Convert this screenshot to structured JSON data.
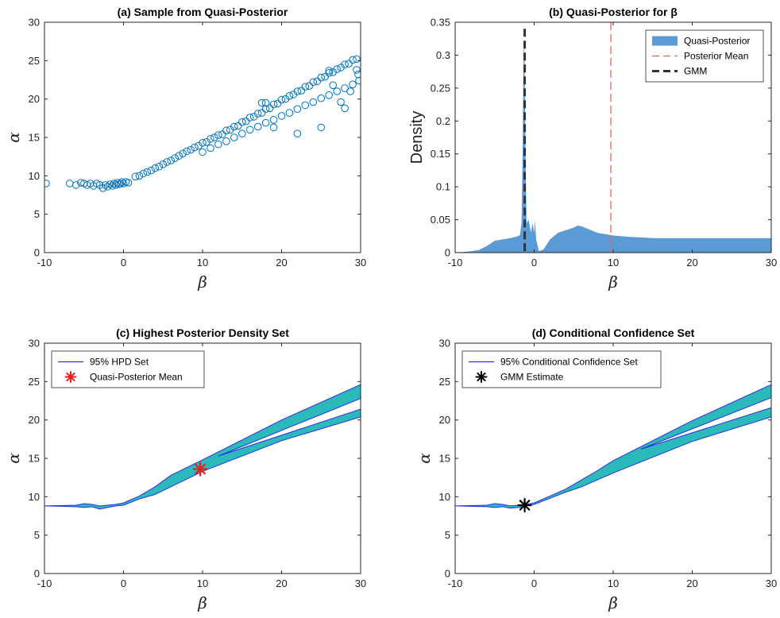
{
  "chart_data": [
    {
      "id": "a",
      "type": "scatter",
      "title": "(a) Sample from Quasi-Posterior",
      "xlabel": "β",
      "ylabel": "α",
      "xlim": [
        -10,
        30
      ],
      "ylim": [
        0,
        30
      ],
      "xticks": [
        -10,
        0,
        10,
        20,
        30
      ],
      "yticks": [
        0,
        5,
        10,
        15,
        20,
        25,
        30
      ],
      "marker": "open-circle",
      "color": "#0072BD",
      "points": [
        [
          -9.8,
          9.0
        ],
        [
          -6.8,
          9.0
        ],
        [
          -6.0,
          8.8
        ],
        [
          -5.4,
          9.1
        ],
        [
          -5.0,
          9.0
        ],
        [
          -4.6,
          8.8
        ],
        [
          -4.2,
          9.0
        ],
        [
          -3.8,
          8.7
        ],
        [
          -3.4,
          9.0
        ],
        [
          -3.0,
          8.8
        ],
        [
          -2.6,
          8.4
        ],
        [
          -2.3,
          8.8
        ],
        [
          -2.0,
          8.6
        ],
        [
          -1.7,
          8.9
        ],
        [
          -1.4,
          8.7
        ],
        [
          -1.2,
          9.0
        ],
        [
          -1.0,
          8.8
        ],
        [
          -0.8,
          9.1
        ],
        [
          -0.6,
          8.9
        ],
        [
          -0.4,
          9.0
        ],
        [
          -0.2,
          9.2
        ],
        [
          0.0,
          9.0
        ],
        [
          0.3,
          9.2
        ],
        [
          0.6,
          9.1
        ],
        [
          1.5,
          9.9
        ],
        [
          2.0,
          10.0
        ],
        [
          2.5,
          10.3
        ],
        [
          3.0,
          10.5
        ],
        [
          3.5,
          10.7
        ],
        [
          4.0,
          11.0
        ],
        [
          4.5,
          11.2
        ],
        [
          5.0,
          11.5
        ],
        [
          5.5,
          11.8
        ],
        [
          6.0,
          12.0
        ],
        [
          6.5,
          12.3
        ],
        [
          7.0,
          12.6
        ],
        [
          7.5,
          12.9
        ],
        [
          8.0,
          13.2
        ],
        [
          8.5,
          13.4
        ],
        [
          9.0,
          13.7
        ],
        [
          9.5,
          13.9
        ],
        [
          10.0,
          14.3
        ],
        [
          10.5,
          14.4
        ],
        [
          11.0,
          14.8
        ],
        [
          11.5,
          15.0
        ],
        [
          12.0,
          15.3
        ],
        [
          12.5,
          15.4
        ],
        [
          13.0,
          15.9
        ],
        [
          13.5,
          16.0
        ],
        [
          14.0,
          16.4
        ],
        [
          14.5,
          16.5
        ],
        [
          15.0,
          17.0
        ],
        [
          15.5,
          17.1
        ],
        [
          16.0,
          17.6
        ],
        [
          16.5,
          17.7
        ],
        [
          17.0,
          18.1
        ],
        [
          17.5,
          18.2
        ],
        [
          18.0,
          18.7
        ],
        [
          18.5,
          18.8
        ],
        [
          19.0,
          19.3
        ],
        [
          19.5,
          19.4
        ],
        [
          20.0,
          19.9
        ],
        [
          20.5,
          20.0
        ],
        [
          21.0,
          20.4
        ],
        [
          21.5,
          20.6
        ],
        [
          22.0,
          21.0
        ],
        [
          22.5,
          21.1
        ],
        [
          23.0,
          21.6
        ],
        [
          23.5,
          21.7
        ],
        [
          24.0,
          22.2
        ],
        [
          24.5,
          22.3
        ],
        [
          25.0,
          22.8
        ],
        [
          25.5,
          22.9
        ],
        [
          26.0,
          23.4
        ],
        [
          26.5,
          23.5
        ],
        [
          27.0,
          23.9
        ],
        [
          27.5,
          24.1
        ],
        [
          28.0,
          24.5
        ],
        [
          28.5,
          24.6
        ],
        [
          29.0,
          25.1
        ],
        [
          29.5,
          25.2
        ],
        [
          10.0,
          13.1
        ],
        [
          11.0,
          13.6
        ],
        [
          12.0,
          14.1
        ],
        [
          13.0,
          14.5
        ],
        [
          14.0,
          15.0
        ],
        [
          15.0,
          15.5
        ],
        [
          16.0,
          16.0
        ],
        [
          17.0,
          16.4
        ],
        [
          18.0,
          16.9
        ],
        [
          19.0,
          17.3
        ],
        [
          20.0,
          17.8
        ],
        [
          21.0,
          18.2
        ],
        [
          22.0,
          18.7
        ],
        [
          23.0,
          19.2
        ],
        [
          24.0,
          19.6
        ],
        [
          25.0,
          20.1
        ],
        [
          26.0,
          20.5
        ],
        [
          27.0,
          21.0
        ],
        [
          28.0,
          21.4
        ],
        [
          29.0,
          21.9
        ],
        [
          29.8,
          22.4
        ],
        [
          17.5,
          19.5
        ],
        [
          18.0,
          19.5
        ],
        [
          25.0,
          16.3
        ],
        [
          26.0,
          23.7
        ],
        [
          29.5,
          23.8
        ],
        [
          29.7,
          23.2
        ],
        [
          27.5,
          19.6
        ],
        [
          28.0,
          18.8
        ],
        [
          28.7,
          21.0
        ],
        [
          22.0,
          15.5
        ],
        [
          19.0,
          16.3
        ],
        [
          26.5,
          21.8
        ]
      ]
    },
    {
      "id": "b",
      "type": "area",
      "title": "(b) Quasi-Posterior for β",
      "xlabel": "β",
      "ylabel": "Density",
      "xlim": [
        -10,
        30
      ],
      "ylim": [
        0,
        0.35
      ],
      "xticks": [
        -10,
        0,
        10,
        20,
        30
      ],
      "yticks": [
        0,
        0.05,
        0.1,
        0.15,
        0.2,
        0.25,
        0.3,
        0.35
      ],
      "legend": {
        "position": "top-right",
        "entries": [
          {
            "label": "Quasi-Posterior",
            "style": "patch",
            "color": "#5B9BD5"
          },
          {
            "label": "Posterior Mean",
            "style": "dashed",
            "color": "#E8635E"
          },
          {
            "label": "GMM",
            "style": "dashed",
            "color": "#333333"
          }
        ]
      },
      "density": [
        [
          -10,
          0.0
        ],
        [
          -9.0,
          0.001
        ],
        [
          -8.0,
          0.002
        ],
        [
          -7.0,
          0.004
        ],
        [
          -6.0,
          0.01
        ],
        [
          -5.0,
          0.018
        ],
        [
          -4.0,
          0.02
        ],
        [
          -3.0,
          0.022
        ],
        [
          -2.0,
          0.025
        ],
        [
          -1.8,
          0.027
        ],
        [
          -1.6,
          0.045
        ],
        [
          -1.45,
          0.16
        ],
        [
          -1.35,
          0.3
        ],
        [
          -1.25,
          0.32
        ],
        [
          -1.15,
          0.22
        ],
        [
          -1.05,
          0.1
        ],
        [
          -0.95,
          0.045
        ],
        [
          -0.7,
          0.05
        ],
        [
          -0.4,
          0.03
        ],
        [
          -0.2,
          0.045
        ],
        [
          0.0,
          0.03
        ],
        [
          0.1,
          0.049
        ],
        [
          0.25,
          0.02
        ],
        [
          0.6,
          0.002
        ],
        [
          1.2,
          0.005
        ],
        [
          2.0,
          0.02
        ],
        [
          3.0,
          0.03
        ],
        [
          4.0,
          0.034
        ],
        [
          5.0,
          0.038
        ],
        [
          5.5,
          0.041
        ],
        [
          6.0,
          0.04
        ],
        [
          7.0,
          0.035
        ],
        [
          8.0,
          0.03
        ],
        [
          9.0,
          0.028
        ],
        [
          10.0,
          0.026
        ],
        [
          12.0,
          0.024
        ],
        [
          15.0,
          0.022
        ],
        [
          20.0,
          0.022
        ],
        [
          25.0,
          0.022
        ],
        [
          30.0,
          0.022
        ]
      ],
      "posterior_mean": 9.7,
      "gmm": -1.2
    },
    {
      "id": "c",
      "type": "area",
      "title": "(c) Highest Posterior Density Set",
      "xlabel": "β",
      "ylabel": "α",
      "xlim": [
        -10,
        30
      ],
      "ylim": [
        0,
        30
      ],
      "xticks": [
        -10,
        0,
        10,
        20,
        30
      ],
      "yticks": [
        0,
        5,
        10,
        15,
        20,
        25,
        30
      ],
      "legend": {
        "position": "top-left",
        "entries": [
          {
            "label": "95% HPD Set",
            "style": "line",
            "color": "#2E2EE8"
          },
          {
            "label": "Quasi-Posterior Mean",
            "style": "asterisk",
            "color": "#E8201B"
          }
        ]
      },
      "fill_color": "#2BB9B9",
      "band": [
        [
          -10,
          8.8,
          8.8
        ],
        [
          -6,
          8.7,
          8.9
        ],
        [
          -5,
          8.6,
          9.1
        ],
        [
          -4,
          8.7,
          9.0
        ],
        [
          -3,
          8.4,
          8.8
        ],
        [
          -2,
          8.6,
          8.9
        ],
        [
          -1,
          8.8,
          9.0
        ],
        [
          0,
          8.9,
          9.2
        ],
        [
          2,
          9.7,
          10.1
        ],
        [
          4,
          10.3,
          11.3
        ],
        [
          6,
          11.3,
          12.8
        ],
        [
          8,
          12.3,
          13.8
        ],
        [
          10,
          13.3,
          14.8
        ],
        [
          20,
          17.3,
          20.0
        ],
        [
          30,
          20.4,
          24.6
        ]
      ],
      "gaps": [
        [
          13.5,
          15.0,
          15.6
        ],
        [
          30,
          21.4,
          22.8
        ]
      ],
      "marker_point": [
        9.7,
        13.6
      ]
    },
    {
      "id": "d",
      "type": "area",
      "title": "(d) Conditional Confidence Set",
      "xlabel": "β",
      "ylabel": "α",
      "xlim": [
        -10,
        30
      ],
      "ylim": [
        0,
        30
      ],
      "xticks": [
        -10,
        0,
        10,
        20,
        30
      ],
      "yticks": [
        0,
        5,
        10,
        15,
        20,
        25,
        30
      ],
      "legend": {
        "position": "top-left",
        "entries": [
          {
            "label": "95% Conditional Confidence Set",
            "style": "line",
            "color": "#2E2EE8"
          },
          {
            "label": "GMM Estimate",
            "style": "asterisk",
            "color": "#000000"
          }
        ]
      },
      "fill_color": "#2BB9B9",
      "band": [
        [
          -10,
          8.8,
          8.8
        ],
        [
          -6,
          8.7,
          8.9
        ],
        [
          -5,
          8.6,
          9.1
        ],
        [
          -4,
          8.7,
          9.0
        ],
        [
          -3,
          8.5,
          8.8
        ],
        [
          -2,
          8.6,
          8.9
        ],
        [
          -1,
          8.8,
          9.0
        ],
        [
          0,
          9.0,
          9.2
        ],
        [
          2,
          9.8,
          10.1
        ],
        [
          4,
          10.6,
          11.0
        ],
        [
          6,
          11.3,
          12.2
        ],
        [
          8,
          12.2,
          13.4
        ],
        [
          10,
          13.1,
          14.7
        ],
        [
          20,
          17.2,
          19.9
        ],
        [
          30,
          20.4,
          24.6
        ]
      ],
      "gaps": [
        [
          15.0,
          16.0,
          16.4
        ],
        [
          30,
          21.6,
          22.9
        ]
      ],
      "marker_point": [
        -1.2,
        8.9
      ]
    }
  ]
}
